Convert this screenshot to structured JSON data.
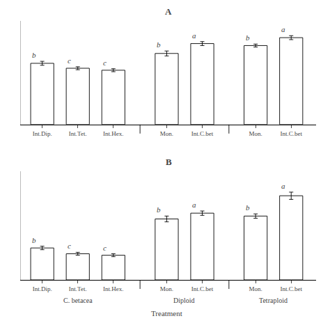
{
  "chart_data": [
    {
      "type": "bar",
      "title": "A",
      "categories": [
        "Int.Dip.",
        "Int.Tet.",
        "Int.Hex.",
        "Mon.",
        "Int.C.bet",
        "Mon.",
        "Int.C.bet"
      ],
      "values": [
        0.62,
        0.57,
        0.55,
        0.72,
        0.82,
        0.8,
        0.88
      ],
      "errors": [
        0.02,
        0.015,
        0.015,
        0.025,
        0.02,
        0.015,
        0.02
      ],
      "annotations": [
        "b",
        "c",
        "c",
        "b",
        "a",
        "b",
        "a"
      ],
      "color": "white",
      "ylim": [
        0,
        1.05
      ],
      "tick_labels": "x",
      "grid": false
    },
    {
      "type": "bar",
      "title": "B",
      "categories": [
        "Int.Dip.",
        "Int.Tet.",
        "Int.Hex.",
        "Mon.",
        "Int.C.bet",
        "Mon.",
        "Int.C.bet"
      ],
      "values": [
        0.22,
        0.18,
        0.17,
        0.42,
        0.46,
        0.44,
        0.58
      ],
      "errors": [
        0.012,
        0.01,
        0.01,
        0.02,
        0.015,
        0.015,
        0.025
      ],
      "annotations": [
        "b",
        "c",
        "c",
        "b",
        "a",
        "b",
        "a"
      ],
      "groups": [
        "C. betacea",
        "C. betacea",
        "C. betacea",
        "Diploid",
        "Diploid",
        "Tetraploid",
        "Tetraploid"
      ],
      "xlabel": "Treatment",
      "color": "white",
      "ylim": [
        0,
        0.75
      ],
      "tick_labels": "x",
      "grid": false
    }
  ]
}
